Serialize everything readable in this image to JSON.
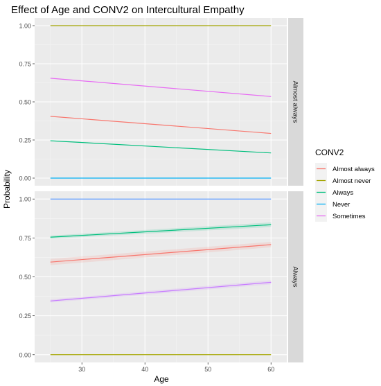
{
  "chart_data": {
    "type": "line",
    "title": "Effect of Age and CONV2 on Intercultural Empathy",
    "xlabel": "Age",
    "ylabel": "Probability",
    "xlim": [
      22.5,
      62.5
    ],
    "ylim": [
      -0.05,
      1.05
    ],
    "x_ticks": [
      30,
      40,
      50,
      60
    ],
    "y_ticks": [
      0,
      0.25,
      0.5,
      0.75,
      1
    ],
    "x_tick_labels": [
      "30",
      "40",
      "50",
      "60"
    ],
    "y_tick_labels": [
      "0.00",
      "0.25",
      "0.50",
      "0.75",
      "1.00"
    ],
    "grid": true,
    "legend_placement": "right",
    "legend": {
      "title": "CONV2",
      "entries": [
        {
          "name": "Almost always",
          "color": "#F8766D"
        },
        {
          "name": "Almost never",
          "color": "#A3A500"
        },
        {
          "name": "Always",
          "color": "#00BF7D"
        },
        {
          "name": "Never",
          "color": "#00B0F6"
        },
        {
          "name": "Sometimes",
          "color": "#E76BF3"
        }
      ]
    },
    "facets": [
      {
        "label": "Almost always",
        "series": [
          {
            "name": "Almost never",
            "color": "#A3A500",
            "x": [
              25,
              60
            ],
            "y": [
              1.0,
              1.0
            ],
            "ribbon": null
          },
          {
            "name": "Sometimes",
            "color": "#E76BF3",
            "x": [
              25,
              60
            ],
            "y": [
              0.655,
              0.535
            ],
            "ribbon": null
          },
          {
            "name": "Almost always",
            "color": "#F8766D",
            "x": [
              25,
              60
            ],
            "y": [
              0.405,
              0.293
            ],
            "ribbon": null
          },
          {
            "name": "Always",
            "color": "#00BF7D",
            "x": [
              25,
              60
            ],
            "y": [
              0.245,
              0.165
            ],
            "ribbon": null
          },
          {
            "name": "Never",
            "color": "#00B0F6",
            "x": [
              25,
              60
            ],
            "y": [
              0.0,
              0.0
            ],
            "ribbon": null
          }
        ]
      },
      {
        "label": "Always",
        "series": [
          {
            "name": "Never",
            "color": "#619CFF",
            "x": [
              25,
              60
            ],
            "y": [
              1.0,
              1.0
            ],
            "ribbon": null
          },
          {
            "name": "Always",
            "color": "#00BF7D",
            "x": [
              25,
              60
            ],
            "y": [
              0.755,
              0.835
            ],
            "ribbon": {
              "lower": [
                0.745,
                0.82
              ],
              "upper": [
                0.765,
                0.85
              ]
            }
          },
          {
            "name": "Almost always",
            "color": "#F8766D",
            "x": [
              25,
              60
            ],
            "y": [
              0.595,
              0.707
            ],
            "ribbon": {
              "lower": [
                0.575,
                0.69
              ],
              "upper": [
                0.615,
                0.725
              ]
            }
          },
          {
            "name": "Sometimes",
            "color": "#C77CFF",
            "x": [
              25,
              60
            ],
            "y": [
              0.345,
              0.465
            ],
            "ribbon": {
              "lower": [
                0.335,
                0.452
              ],
              "upper": [
                0.355,
                0.478
              ]
            }
          },
          {
            "name": "Almost never",
            "color": "#A3A500",
            "x": [
              25,
              60
            ],
            "y": [
              0.0,
              0.0
            ],
            "ribbon": null
          }
        ]
      }
    ]
  }
}
